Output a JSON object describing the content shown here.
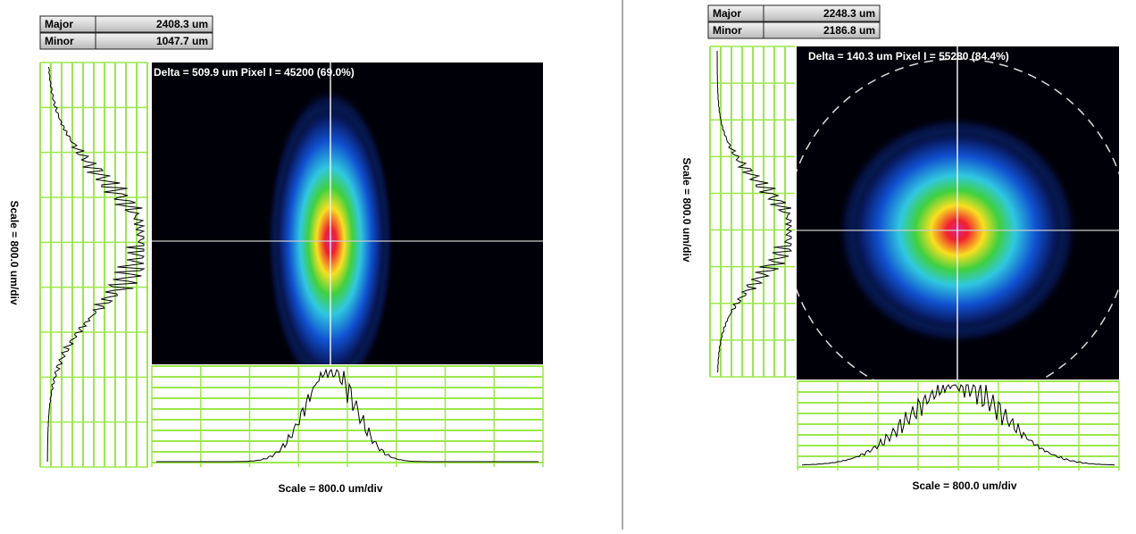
{
  "panels": [
    {
      "major": {
        "label": "Major",
        "value": "2408.3 um"
      },
      "minor": {
        "label": "Minor",
        "value": "1047.7 um"
      },
      "readout": "Delta = 509.9 um Pixel I = 45200 (69.0%)",
      "x_scale": "Scale = 800.0 um/div",
      "y_scale": "Scale = 800.0 um/div"
    },
    {
      "major": {
        "label": "Major",
        "value": "2248.3 um"
      },
      "minor": {
        "label": "Minor",
        "value": "2186.8 um"
      },
      "readout": "Delta = 140.3 um Pixel I = 55280 (84.4%)",
      "x_scale": "Scale = 800.0 um/div",
      "y_scale": "Scale = 800.0 um/div"
    }
  ]
}
